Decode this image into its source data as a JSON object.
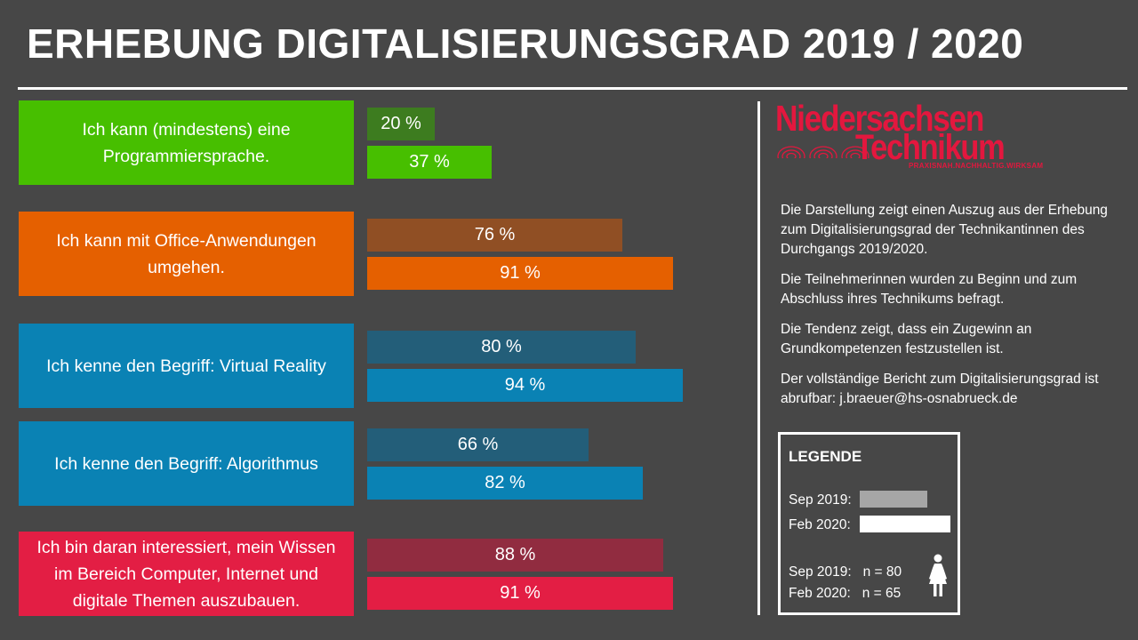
{
  "title": "ERHEBUNG DIGITALISIERUNGSGRAD 2019 / 2020",
  "chart_data": {
    "type": "bar",
    "orientation": "horizontal",
    "series": [
      {
        "name": "Sep 2019",
        "values": [
          20,
          76,
          80,
          66,
          88
        ]
      },
      {
        "name": "Feb 2020",
        "values": [
          37,
          91,
          94,
          82,
          91
        ]
      }
    ],
    "xlim": [
      0,
      100
    ],
    "items": [
      {
        "question": "Ich kann (mindestens) eine Programmiersprache.",
        "sep2019": 20,
        "feb2020": 37,
        "sep2019_label": "20 %",
        "feb2020_label": "37 %",
        "color_box": "#47bf00",
        "color_sep": "#3d7c1f",
        "color_feb": "#47bf00"
      },
      {
        "question": "Ich kann mit Office-Anwendungen umgehen.",
        "sep2019": 76,
        "feb2020": 91,
        "sep2019_label": "76 %",
        "feb2020_label": "91 %",
        "color_box": "#e56000",
        "color_sep": "#904f24",
        "color_feb": "#e56000"
      },
      {
        "question": "Ich kenne den Begriff: Virtual Reality",
        "sep2019": 80,
        "feb2020": 94,
        "sep2019_label": "80 %",
        "feb2020_label": "94 %",
        "color_box": "#0a82b4",
        "color_sep": "#235e79",
        "color_feb": "#0a82b4"
      },
      {
        "question": "Ich kenne den Begriff: Algorithmus",
        "sep2019": 66,
        "feb2020": 82,
        "sep2019_label": "66 %",
        "feb2020_label": "82 %",
        "color_box": "#0a82b4",
        "color_sep": "#235e79",
        "color_feb": "#0a82b4"
      },
      {
        "question": "Ich bin daran interessiert, mein Wissen im Bereich Computer, Internet und digitale Themen auszubauen.",
        "sep2019": 88,
        "feb2020": 91,
        "sep2019_label": "88 %",
        "feb2020_label": "91 %",
        "color_box": "#e31e44",
        "color_sep": "#912c40",
        "color_feb": "#e31e44"
      }
    ]
  },
  "logo": {
    "line1": "Niedersachsen",
    "line2": "Technikum",
    "tagline": "PRAXISNAH.NACHHALTIG.WIRKSAM",
    "color": "#e3173e"
  },
  "description": [
    "Die Darstellung zeigt einen Auszug aus der Erhebung zum Digitalisierungsgrad der Technikantinnen des Durchgangs 2019/2020.",
    "Die Teilnehmerinnen wurden zu Beginn und zum Abschluss ihres Technikums befragt.",
    "Die Tendenz zeigt, dass ein Zugewinn an Grundkompetenzen festzustellen ist.",
    "Der vollständige Bericht zum Digitalisierungsgrad ist abrufbar: j.braeuer@hs-osnabrueck.de"
  ],
  "legend": {
    "title": "LEGENDE",
    "sep_label": "Sep 2019:",
    "feb_label": "Feb 2020:",
    "sep_color": "#a6a6a6",
    "feb_color": "#ffffff",
    "n_sep": "Sep 2019:   n = 80",
    "n_feb": "Feb 2020:   n = 65",
    "icon": "woman-icon"
  }
}
